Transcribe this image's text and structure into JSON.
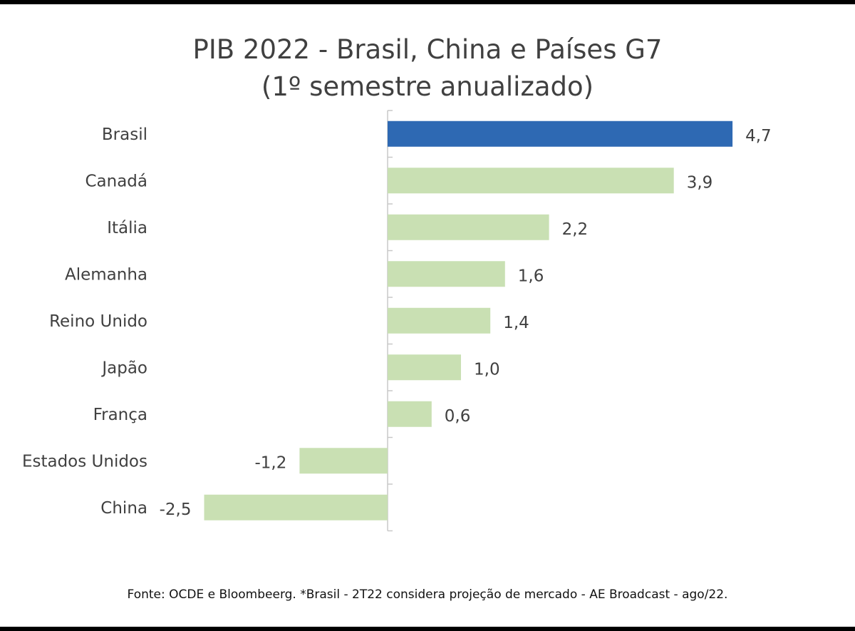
{
  "title_line1": "PIB 2022 - Brasil, China e Países G7",
  "title_line2": "(1º semestre anualizado)",
  "source": "Fonte: OCDE e Bloombeerg. *Brasil - 2T22 considera projeção de mercado - AE Broadcast - ago/22.",
  "colors": {
    "highlight": "#2e69b3",
    "default": "#c9e0b3",
    "axis": "#c8c8c8"
  },
  "chart_data": {
    "type": "bar",
    "orientation": "horizontal",
    "title": "PIB 2022 - Brasil, China e Países G7 (1º semestre anualizado)",
    "categories": [
      "Brasil",
      "Canadá",
      "Itália",
      "Alemanha",
      "Reino Unido",
      "Japão",
      "França",
      "Estados Unidos",
      "China"
    ],
    "values": [
      4.7,
      3.9,
      2.2,
      1.6,
      1.4,
      1.0,
      0.6,
      -1.2,
      -2.5
    ],
    "value_labels": [
      "4,7",
      "3,9",
      "2,2",
      "1,6",
      "1,4",
      "1,0",
      "0,6",
      "-1,2",
      "-2,5"
    ],
    "highlight": "Brasil",
    "xlim": [
      -2.5,
      4.7
    ],
    "grid": false,
    "legend": "none"
  }
}
